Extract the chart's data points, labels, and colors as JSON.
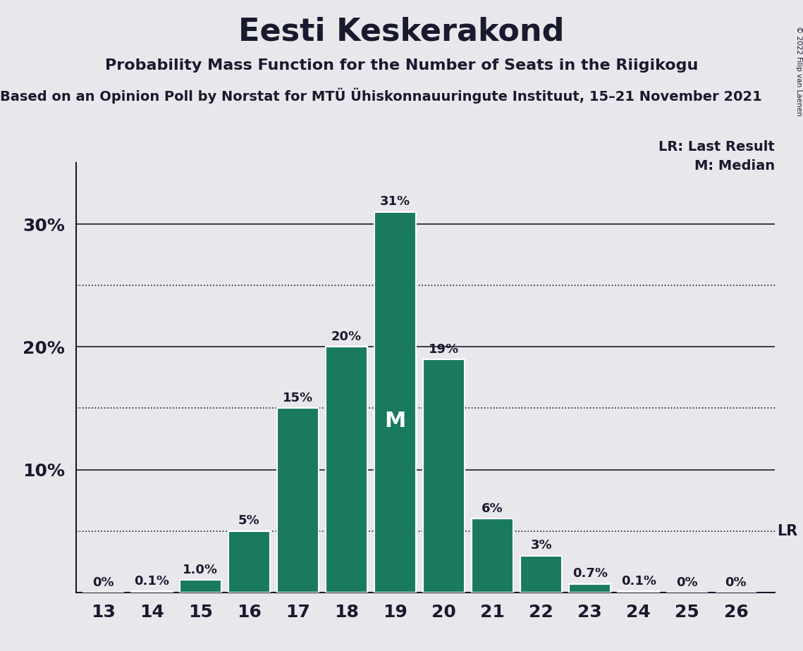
{
  "title": "Eesti Keskerakond",
  "subtitle": "Probability Mass Function for the Number of Seats in the Riigikogu",
  "subsubtitle": "Based on an Opinion Poll by Norstat for MTÜ Ühiskonnauuringute Instituut, 15–21 November 2021",
  "copyright": "© 2022 Filip van Laenen",
  "seats": [
    13,
    14,
    15,
    16,
    17,
    18,
    19,
    20,
    21,
    22,
    23,
    24,
    25,
    26
  ],
  "probabilities": [
    0.0,
    0.1,
    1.0,
    5.0,
    15.0,
    20.0,
    31.0,
    19.0,
    6.0,
    3.0,
    0.7,
    0.1,
    0.0,
    0.0
  ],
  "bar_color": "#1a7a5e",
  "bar_edge_color": "#ffffff",
  "background_color": "#e8e8ec",
  "median_seat": 19,
  "last_result_value": 5.0,
  "ylim": [
    0,
    35
  ],
  "solid_gridlines": [
    10,
    20,
    30
  ],
  "dotted_gridlines": [
    5,
    15,
    25
  ],
  "ytick_positions": [
    10,
    20,
    30
  ],
  "ytick_labels": [
    "10%",
    "20%",
    "30%"
  ],
  "title_fontsize": 32,
  "subtitle_fontsize": 16,
  "subsubtitle_fontsize": 14,
  "label_fontsize": 13,
  "axis_fontsize": 18,
  "text_color": "#1a1a2e",
  "line_color": "#1a1a2e",
  "lr_line_value": 5.0,
  "median_line_value": 30.0
}
